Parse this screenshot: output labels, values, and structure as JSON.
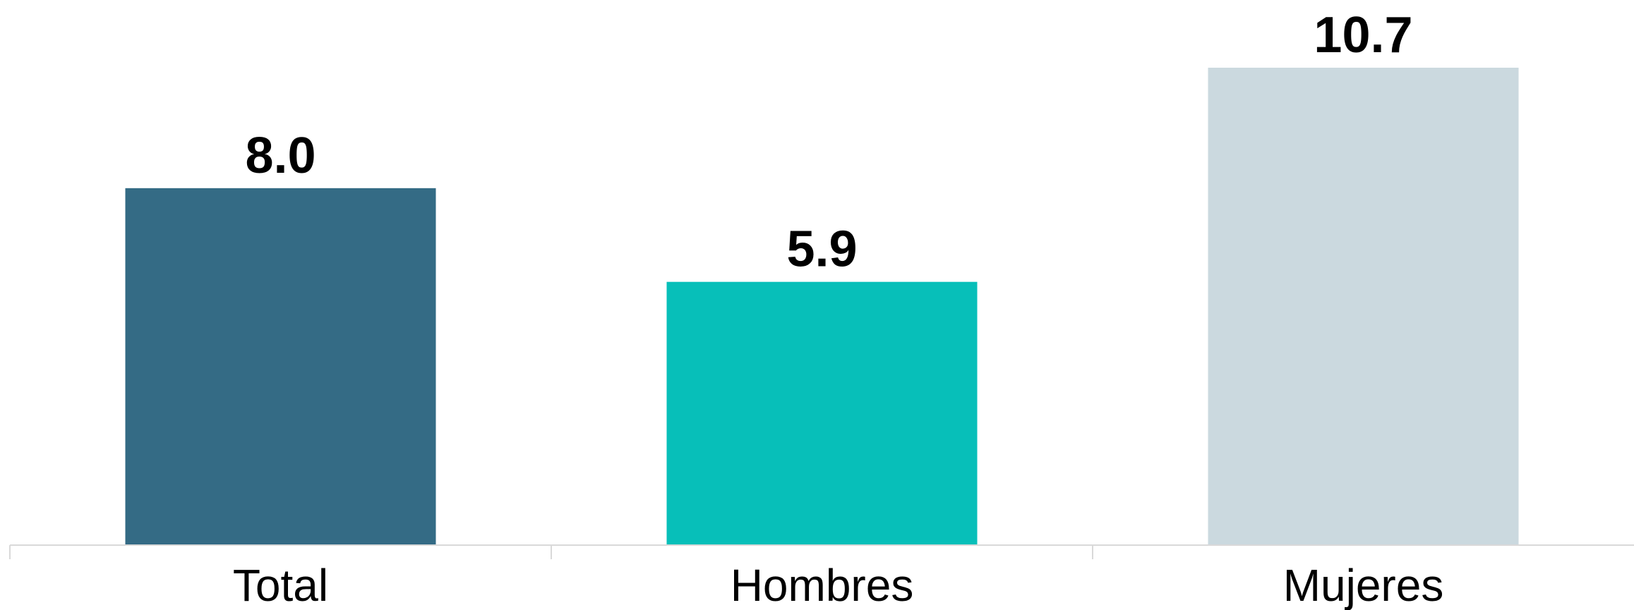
{
  "chart_data": {
    "type": "bar",
    "categories": [
      "Total",
      "Hombres",
      "Mujeres"
    ],
    "values": [
      8.0,
      5.9,
      10.7
    ],
    "value_labels": [
      "8.0",
      "5.9",
      "10.7"
    ],
    "colors": [
      "#346b85",
      "#07bfb9",
      "#cbd9df"
    ],
    "ylim": [
      0,
      10.7
    ],
    "grid": false,
    "legend": "none",
    "title": "",
    "xlabel": "",
    "ylabel": ""
  }
}
